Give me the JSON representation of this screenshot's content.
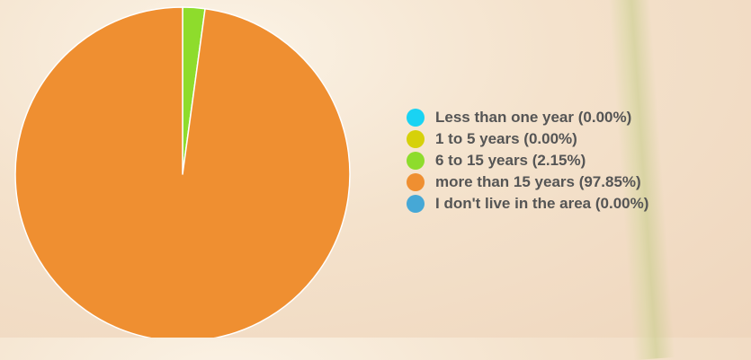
{
  "chart_data": {
    "type": "pie",
    "title": "",
    "categories": [
      "Less than one year",
      "1 to 5 years",
      "6 to 15 years",
      "more than 15 years",
      "I don't live in the area"
    ],
    "values": [
      0.0,
      0.0,
      2.15,
      97.85,
      0.0
    ],
    "colors": [
      "#19d3f3",
      "#d6d10a",
      "#8edc2c",
      "#ef8f31",
      "#46a8d6"
    ],
    "legend_labels": [
      "Less than one year (0.00%)",
      "1 to 5 years (0.00%)",
      "6 to 15 years (2.15%)",
      "more than 15 years (97.85%)",
      "I don't live in the area (0.00%)"
    ],
    "legend": "right",
    "start_angle_deg": 0
  }
}
